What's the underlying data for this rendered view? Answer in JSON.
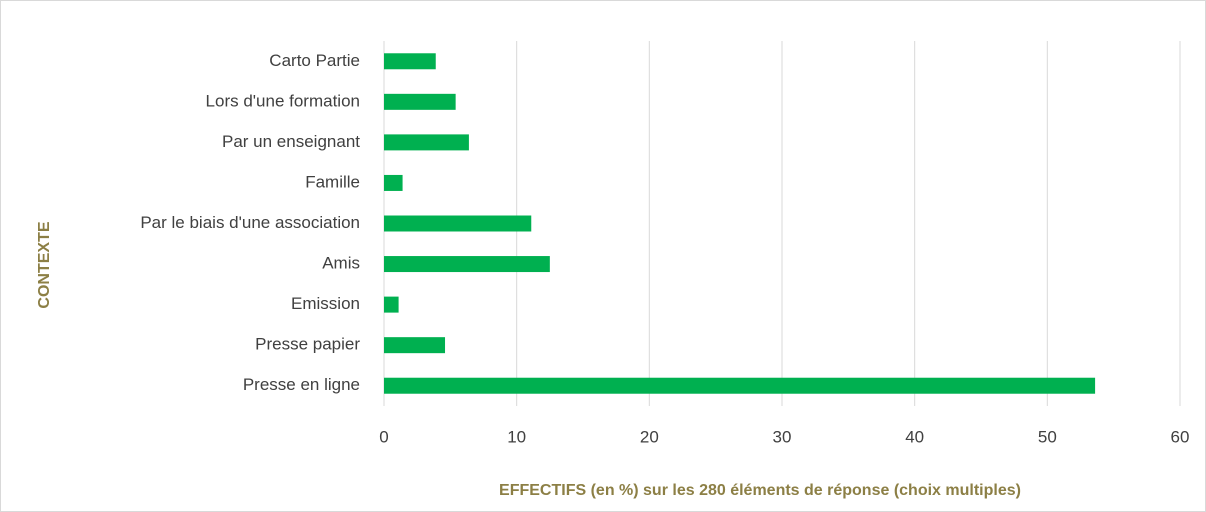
{
  "chart_data": {
    "type": "bar",
    "orientation": "horizontal",
    "categories": [
      "Carto Partie",
      "Lors d'une formation",
      "Par un enseignant",
      "Famille",
      "Par le biais d'une association",
      "Amis",
      "Emission",
      "Presse papier",
      "Presse en ligne"
    ],
    "values": [
      3.9,
      5.4,
      6.4,
      1.4,
      11.1,
      12.5,
      1.1,
      4.6,
      53.6
    ],
    "color": "#00b050",
    "xlim": [
      0,
      60
    ],
    "xticks": [
      0,
      10,
      20,
      30,
      40,
      50,
      60
    ],
    "grid": true,
    "x_label": "EFFECTIFS (en %)  sur les 280 éléments de réponse (choix multiples)",
    "y_label": "CONTEXTE"
  }
}
